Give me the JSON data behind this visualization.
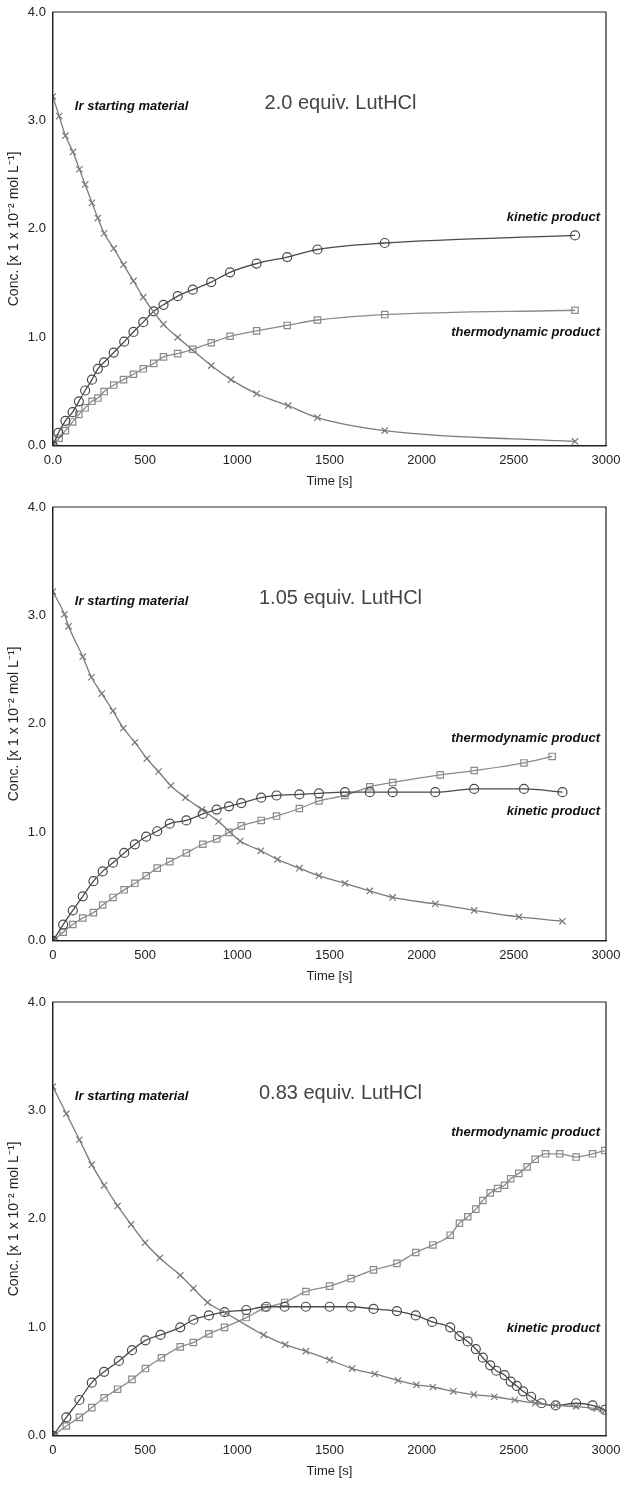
{
  "chart_data": [
    {
      "type": "line",
      "title": "2.0 equiv. LutHCl",
      "xlabel": "Time [s]",
      "ylabel": "Conc. [x 1 x 10⁻² mol L⁻¹]",
      "xlim": [
        0,
        3000
      ],
      "ylim": [
        0,
        4
      ],
      "xticks": [
        {
          "value": 0,
          "label": "0.0"
        },
        500,
        1000,
        1500,
        2000,
        2500,
        3000
      ],
      "yticks": [
        {
          "value": 0,
          "label": "0.0"
        },
        {
          "value": 1,
          "label": "1.0"
        },
        {
          "value": 2,
          "label": "2.0"
        },
        {
          "value": 3,
          "label": "3.0"
        },
        {
          "value": 4,
          "label": "4.0"
        }
      ],
      "grid": false,
      "legend": false,
      "series": [
        {
          "name": "Ir starting material",
          "color": "#7a7a7a",
          "marker": "cross",
          "x": [
            0,
            34,
            68,
            109,
            144,
            175,
            212,
            244,
            278,
            330,
            383,
            437,
            490,
            600,
            677,
            859,
            966,
            1105,
            1276,
            1435,
            1800,
            2832
          ],
          "values": [
            3.22,
            3.04,
            2.86,
            2.71,
            2.55,
            2.41,
            2.24,
            2.1,
            1.96,
            1.82,
            1.67,
            1.52,
            1.37,
            1.12,
            1.0,
            0.74,
            0.61,
            0.48,
            0.37,
            0.26,
            0.14,
            0.04
          ]
        },
        {
          "name": "kinetic product",
          "color": "#4a4a4a",
          "marker": "circle",
          "x": [
            0,
            30,
            68,
            107,
            141,
            175,
            212,
            244,
            278,
            330,
            387,
            437,
            490,
            547,
            600,
            677,
            759,
            859,
            961,
            1105,
            1271,
            1435,
            1800,
            2832
          ],
          "values": [
            0,
            0.12,
            0.23,
            0.31,
            0.41,
            0.51,
            0.61,
            0.71,
            0.77,
            0.86,
            0.96,
            1.05,
            1.14,
            1.24,
            1.3,
            1.38,
            1.44,
            1.51,
            1.6,
            1.68,
            1.74,
            1.81,
            1.87,
            1.94
          ]
        },
        {
          "name": "thermodynamic product",
          "color": "#8a8a8a",
          "marker": "square",
          "x": [
            0,
            34,
            68,
            107,
            141,
            175,
            212,
            244,
            278,
            330,
            383,
            437,
            490,
            547,
            600,
            677,
            759,
            859,
            961,
            1105,
            1271,
            1435,
            1800,
            2832
          ],
          "values": [
            0,
            0.07,
            0.14,
            0.22,
            0.29,
            0.35,
            0.41,
            0.44,
            0.5,
            0.56,
            0.61,
            0.66,
            0.71,
            0.76,
            0.82,
            0.85,
            0.89,
            0.95,
            1.01,
            1.06,
            1.11,
            1.16,
            1.21,
            1.25
          ]
        }
      ]
    },
    {
      "type": "line",
      "title": "1.05 equiv. LutHCl",
      "xlabel": "Time [s]",
      "ylabel": "Conc. [x 1 x 10⁻² mol L⁻¹]",
      "xlim": [
        0,
        3000
      ],
      "ylim": [
        0,
        4
      ],
      "xticks": [
        0,
        500,
        1000,
        1500,
        2000,
        2500,
        3000
      ],
      "yticks": [
        {
          "value": 0,
          "label": "0.0"
        },
        {
          "value": 1,
          "label": "1.0"
        },
        {
          "value": 2,
          "label": "2.0"
        },
        {
          "value": 3,
          "label": "3.0"
        },
        {
          "value": 4,
          "label": "4.0"
        }
      ],
      "grid": false,
      "legend": false,
      "series": [
        {
          "name": "Ir starting material",
          "color": "#7a7a7a",
          "marker": "cross",
          "x": [
            0,
            63,
            85,
            162,
            209,
            265,
            326,
            382,
            445,
            510,
            573,
            640,
            719,
            809,
            899,
            1016,
            1128,
            1218,
            1337,
            1443,
            1584,
            1719,
            1843,
            2074,
            2285,
            2528,
            2764
          ],
          "values": [
            3.22,
            3.01,
            2.9,
            2.62,
            2.43,
            2.28,
            2.12,
            1.96,
            1.83,
            1.68,
            1.56,
            1.43,
            1.32,
            1.21,
            1.1,
            0.92,
            0.83,
            0.75,
            0.67,
            0.6,
            0.53,
            0.46,
            0.4,
            0.34,
            0.28,
            0.22,
            0.18
          ]
        },
        {
          "name": "kinetic product",
          "color": "#4a4a4a",
          "marker": "circle",
          "x": [
            0,
            56,
            108,
            162,
            220,
            270,
            326,
            387,
            445,
            506,
            566,
            634,
            724,
            813,
            888,
            955,
            1022,
            1130,
            1213,
            1337,
            1443,
            1584,
            1719,
            1843,
            2074,
            2285,
            2555,
            2764
          ],
          "values": [
            0,
            0.15,
            0.28,
            0.41,
            0.55,
            0.64,
            0.72,
            0.81,
            0.89,
            0.96,
            1.01,
            1.08,
            1.11,
            1.17,
            1.21,
            1.24,
            1.27,
            1.32,
            1.34,
            1.35,
            1.36,
            1.37,
            1.37,
            1.37,
            1.37,
            1.4,
            1.4,
            1.37
          ]
        },
        {
          "name": "thermodynamic product",
          "color": "#8a8a8a",
          "marker": "square",
          "x": [
            0,
            56,
            108,
            162,
            220,
            270,
            326,
            387,
            445,
            506,
            566,
            634,
            724,
            813,
            888,
            955,
            1022,
            1130,
            1213,
            1337,
            1443,
            1584,
            1719,
            1843,
            2101,
            2285,
            2555,
            2708
          ],
          "values": [
            0,
            0.08,
            0.15,
            0.21,
            0.26,
            0.33,
            0.4,
            0.47,
            0.53,
            0.6,
            0.67,
            0.73,
            0.81,
            0.89,
            0.94,
            1.0,
            1.06,
            1.11,
            1.15,
            1.22,
            1.29,
            1.34,
            1.42,
            1.46,
            1.53,
            1.57,
            1.64,
            1.7
          ]
        }
      ]
    },
    {
      "type": "line",
      "title": "0.83 equiv. LutHCl",
      "xlabel": "Time [s]",
      "ylabel": "Conc. [x 1 x 10⁻² mol L⁻¹]",
      "xlim": [
        0,
        3000
      ],
      "ylim": [
        0,
        4
      ],
      "xticks": [
        0,
        500,
        1000,
        1500,
        2000,
        2500,
        3000
      ],
      "yticks": [
        {
          "value": 0,
          "label": "0.0"
        },
        {
          "value": 1,
          "label": "1.0"
        },
        {
          "value": 2,
          "label": "2.0"
        },
        {
          "value": 3,
          "label": "3.0"
        },
        {
          "value": 4,
          "label": "4.0"
        }
      ],
      "grid": false,
      "legend": false,
      "series": [
        {
          "name": "Ir starting material",
          "color": "#7a7a7a",
          "marker": "cross",
          "x": [
            0,
            73,
            144,
            211,
            278,
            351,
            424,
            500,
            580,
            691,
            762,
            839,
            939,
            1143,
            1260,
            1372,
            1501,
            1623,
            1746,
            1872,
            1972,
            2061,
            2172,
            2283,
            2394,
            2505,
            2616,
            2727,
            2838,
            2950,
            2994
          ],
          "values": [
            3.22,
            2.97,
            2.73,
            2.5,
            2.31,
            2.12,
            1.95,
            1.78,
            1.64,
            1.48,
            1.36,
            1.23,
            1.13,
            0.93,
            0.84,
            0.78,
            0.7,
            0.62,
            0.57,
            0.51,
            0.47,
            0.45,
            0.41,
            0.38,
            0.36,
            0.33,
            0.3,
            0.28,
            0.27,
            0.25,
            0.23
          ]
        },
        {
          "name": "kinetic product",
          "color": "#4a4a4a",
          "marker": "circle",
          "x": [
            0,
            73,
            144,
            211,
            278,
            358,
            429,
            502,
            584,
            691,
            762,
            846,
            931,
            1049,
            1157,
            1257,
            1372,
            1501,
            1617,
            1739,
            1866,
            1968,
            2057,
            2155,
            2205,
            2250,
            2294,
            2332,
            2372,
            2405,
            2450,
            2483,
            2516,
            2550,
            2594,
            2650,
            2727,
            2838,
            2927,
            2994
          ],
          "values": [
            0,
            0.17,
            0.33,
            0.49,
            0.59,
            0.69,
            0.79,
            0.88,
            0.93,
            1.0,
            1.07,
            1.11,
            1.14,
            1.16,
            1.19,
            1.19,
            1.19,
            1.19,
            1.19,
            1.17,
            1.15,
            1.11,
            1.05,
            1.0,
            0.92,
            0.87,
            0.8,
            0.72,
            0.65,
            0.6,
            0.56,
            0.5,
            0.46,
            0.41,
            0.36,
            0.3,
            0.28,
            0.3,
            0.28,
            0.24
          ]
        },
        {
          "name": "thermodynamic product",
          "color": "#8a8a8a",
          "marker": "square",
          "x": [
            0,
            73,
            144,
            211,
            278,
            351,
            429,
            502,
            589,
            691,
            762,
            846,
            931,
            1049,
            1150,
            1257,
            1372,
            1501,
            1617,
            1739,
            1866,
            1968,
            2061,
            2155,
            2205,
            2250,
            2294,
            2332,
            2372,
            2412,
            2450,
            2483,
            2527,
            2572,
            2616,
            2672,
            2749,
            2838,
            2927,
            2994
          ],
          "values": [
            0,
            0.09,
            0.17,
            0.26,
            0.35,
            0.43,
            0.52,
            0.62,
            0.72,
            0.82,
            0.86,
            0.94,
            1.0,
            1.09,
            1.18,
            1.23,
            1.33,
            1.38,
            1.45,
            1.53,
            1.59,
            1.69,
            1.76,
            1.85,
            1.96,
            2.02,
            2.09,
            2.17,
            2.24,
            2.28,
            2.31,
            2.37,
            2.42,
            2.48,
            2.55,
            2.6,
            2.6,
            2.57,
            2.6,
            2.63
          ]
        }
      ]
    }
  ]
}
